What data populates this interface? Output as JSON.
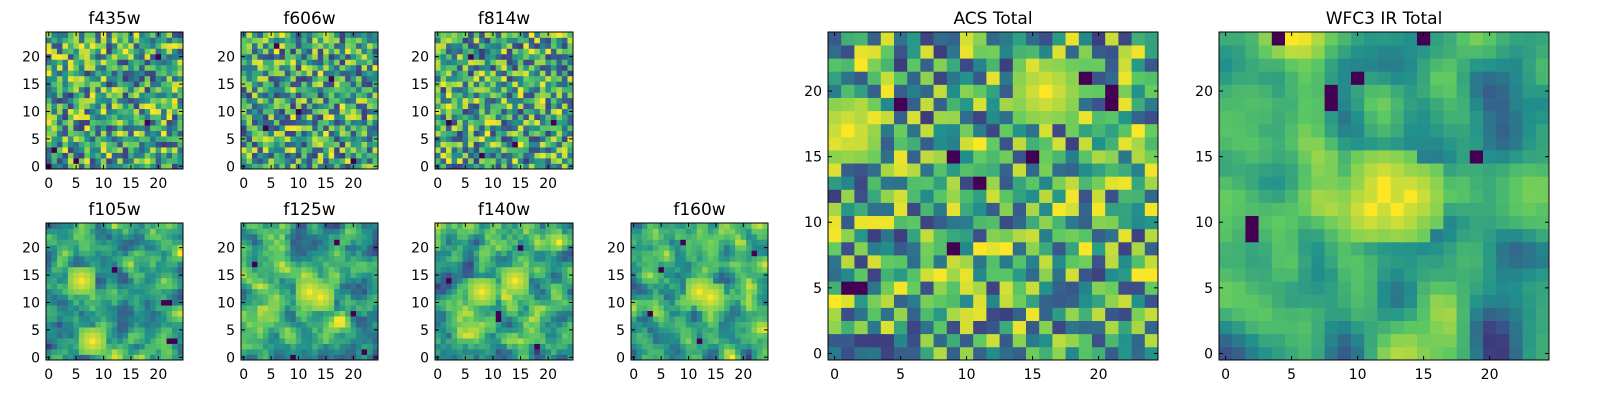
{
  "colormap": [
    "#440154",
    "#3b528b",
    "#21918c",
    "#5ec962",
    "#fde725"
  ],
  "chart_data": [
    {
      "type": "heatmap",
      "title": "f435w",
      "xticks": [
        0,
        5,
        10,
        15,
        20
      ],
      "yticks": [
        0,
        5,
        10,
        15,
        20
      ],
      "xlim": [
        -0.5,
        24.5
      ],
      "ylim": [
        -0.5,
        24.5
      ],
      "grid_size": 25,
      "seed": 11,
      "smooth": 0,
      "dark_spots": [
        [
          0,
          0
        ],
        [
          1,
          3
        ],
        [
          20,
          20
        ],
        [
          18,
          8
        ],
        [
          5,
          1
        ]
      ],
      "bright_spots": []
    },
    {
      "type": "heatmap",
      "title": "f606w",
      "xticks": [
        0,
        5,
        10,
        15,
        20
      ],
      "yticks": [
        0,
        5,
        10,
        15,
        20
      ],
      "xlim": [
        -0.5,
        24.5
      ],
      "ylim": [
        -0.5,
        24.5
      ],
      "grid_size": 25,
      "seed": 23,
      "smooth": 0,
      "dark_spots": [
        [
          16,
          16
        ],
        [
          10,
          10
        ],
        [
          4,
          7
        ],
        [
          20,
          1
        ],
        [
          6,
          22
        ]
      ],
      "bright_spots": []
    },
    {
      "type": "heatmap",
      "title": "f814w",
      "xticks": [
        0,
        5,
        10,
        15,
        20
      ],
      "yticks": [
        0,
        5,
        10,
        15,
        20
      ],
      "xlim": [
        -0.5,
        24.5
      ],
      "ylim": [
        -0.5,
        24.5
      ],
      "grid_size": 25,
      "seed": 37,
      "smooth": 0,
      "dark_spots": [
        [
          2,
          8
        ],
        [
          6,
          20
        ],
        [
          14,
          4
        ],
        [
          21,
          8
        ],
        [
          8,
          2
        ]
      ],
      "bright_spots": []
    },
    {
      "type": "heatmap",
      "title": "f105w",
      "xticks": [
        0,
        5,
        10,
        15,
        20
      ],
      "yticks": [
        0,
        5,
        10,
        15,
        20
      ],
      "xlim": [
        -0.5,
        24.5
      ],
      "ylim": [
        -0.5,
        24.5
      ],
      "grid_size": 25,
      "seed": 41,
      "smooth": 1,
      "dark_spots": [
        [
          22,
          3
        ],
        [
          23,
          3
        ],
        [
          21,
          10
        ],
        [
          22,
          10
        ],
        [
          12,
          16
        ]
      ],
      "bright_spots": [
        [
          6,
          14
        ],
        [
          8,
          3
        ]
      ]
    },
    {
      "type": "heatmap",
      "title": "f125w",
      "xticks": [
        0,
        5,
        10,
        15,
        20
      ],
      "yticks": [
        0,
        5,
        10,
        15,
        20
      ],
      "xlim": [
        -0.5,
        24.5
      ],
      "ylim": [
        -0.5,
        24.5
      ],
      "grid_size": 25,
      "seed": 53,
      "smooth": 1,
      "dark_spots": [
        [
          9,
          0
        ],
        [
          22,
          1
        ],
        [
          2,
          17
        ],
        [
          17,
          21
        ],
        [
          20,
          8
        ]
      ],
      "bright_spots": [
        [
          12,
          12
        ],
        [
          14,
          11
        ]
      ]
    },
    {
      "type": "heatmap",
      "title": "f140w",
      "xticks": [
        0,
        5,
        10,
        15,
        20
      ],
      "yticks": [
        0,
        5,
        10,
        15,
        20
      ],
      "xlim": [
        -0.5,
        24.5
      ],
      "ylim": [
        -0.5,
        24.5
      ],
      "grid_size": 25,
      "seed": 67,
      "smooth": 1,
      "dark_spots": [
        [
          11,
          7
        ],
        [
          11,
          8
        ],
        [
          2,
          14
        ],
        [
          18,
          2
        ],
        [
          15,
          20
        ]
      ],
      "bright_spots": [
        [
          8,
          12
        ],
        [
          14,
          14
        ]
      ]
    },
    {
      "type": "heatmap",
      "title": "f160w",
      "xticks": [
        0,
        5,
        10,
        15,
        20
      ],
      "yticks": [
        0,
        5,
        10,
        15,
        20
      ],
      "xlim": [
        -0.5,
        24.5
      ],
      "ylim": [
        -0.5,
        24.5
      ],
      "grid_size": 25,
      "seed": 79,
      "smooth": 1,
      "dark_spots": [
        [
          5,
          16
        ],
        [
          9,
          21
        ],
        [
          22,
          19
        ],
        [
          12,
          3
        ],
        [
          3,
          8
        ]
      ],
      "bright_spots": [
        [
          14,
          11
        ],
        [
          12,
          12
        ]
      ]
    },
    {
      "type": "heatmap",
      "title": "ACS Total",
      "xticks": [
        0,
        5,
        10,
        15,
        20
      ],
      "yticks": [
        0,
        5,
        10,
        15,
        20
      ],
      "xlim": [
        -0.5,
        24.5
      ],
      "ylim": [
        -0.5,
        24.5
      ],
      "grid_size": 25,
      "seed": 97,
      "smooth": 0,
      "dark_spots": [
        [
          1,
          5
        ],
        [
          2,
          5
        ],
        [
          9,
          8
        ],
        [
          9,
          15
        ],
        [
          15,
          15
        ],
        [
          5,
          19
        ],
        [
          19,
          21
        ],
        [
          21,
          20
        ],
        [
          21,
          19
        ],
        [
          11,
          13
        ]
      ],
      "bright_spots": [
        [
          1,
          17
        ],
        [
          16,
          20
        ]
      ]
    },
    {
      "type": "heatmap",
      "title": "WFC3 IR Total",
      "xticks": [
        0,
        5,
        10,
        15,
        20
      ],
      "yticks": [
        0,
        5,
        10,
        15,
        20
      ],
      "xlim": [
        -0.5,
        24.5
      ],
      "ylim": [
        -0.5,
        24.5
      ],
      "grid_size": 25,
      "seed": 131,
      "smooth": 2,
      "dark_spots": [
        [
          2,
          9
        ],
        [
          2,
          10
        ],
        [
          8,
          19
        ],
        [
          8,
          20
        ],
        [
          10,
          21
        ],
        [
          19,
          15
        ],
        [
          4,
          24
        ],
        [
          15,
          24
        ]
      ],
      "bright_spots": [
        [
          12,
          12
        ],
        [
          13,
          11
        ],
        [
          11,
          11
        ],
        [
          14,
          12
        ],
        [
          12,
          13
        ]
      ]
    }
  ]
}
